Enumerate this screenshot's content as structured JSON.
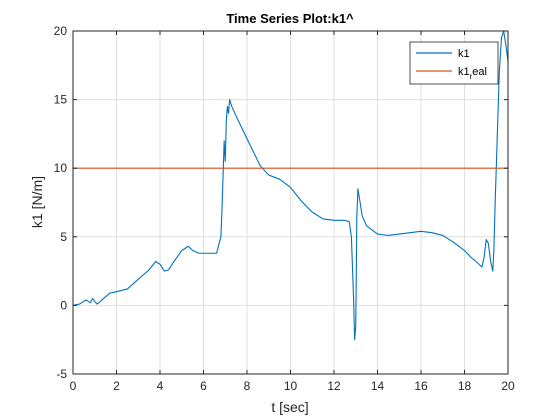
{
  "chart_data": {
    "type": "line",
    "title": "Time Series Plot:k1^",
    "xlabel": "t [sec]",
    "ylabel": "k1 [N/m]",
    "xlim": [
      0,
      20
    ],
    "ylim": [
      -5,
      20
    ],
    "xticks": [
      0,
      2,
      4,
      6,
      8,
      10,
      12,
      14,
      16,
      18,
      20
    ],
    "yticks": [
      -5,
      0,
      5,
      10,
      15,
      20
    ],
    "grid": true,
    "legend_position": "top-right",
    "series": [
      {
        "name": "k1",
        "color": "#0072bd",
        "x": [
          0,
          0.3,
          0.6,
          0.8,
          0.9,
          1.0,
          1.1,
          1.2,
          1.4,
          1.7,
          2.0,
          2.5,
          3.0,
          3.5,
          3.8,
          4.0,
          4.2,
          4.4,
          4.6,
          5.0,
          5.3,
          5.5,
          5.8,
          6.2,
          6.6,
          6.8,
          6.85,
          6.9,
          6.95,
          7.0,
          7.05,
          7.1,
          7.15,
          7.2,
          7.3,
          7.5,
          7.8,
          8.2,
          8.6,
          9.0,
          9.5,
          10.0,
          10.5,
          11.0,
          11.5,
          12.0,
          12.5,
          12.7,
          12.8,
          12.9,
          12.95,
          13.0,
          13.05,
          13.1,
          13.2,
          13.3,
          13.5,
          14.0,
          14.5,
          15.0,
          15.5,
          16.0,
          16.5,
          17.0,
          17.5,
          18.0,
          18.3,
          18.6,
          18.8,
          18.9,
          19.0,
          19.1,
          19.2,
          19.3,
          19.35,
          19.4,
          19.5,
          19.6,
          19.7,
          19.8,
          19.9,
          20.0
        ],
        "y": [
          0,
          0.1,
          0.4,
          0.2,
          0.5,
          0.3,
          0.1,
          0.2,
          0.5,
          0.9,
          1.0,
          1.2,
          1.9,
          2.6,
          3.2,
          3.0,
          2.5,
          2.6,
          3.1,
          4.0,
          4.3,
          4.0,
          3.8,
          3.8,
          3.8,
          5.0,
          7.0,
          9.5,
          12.0,
          10.5,
          13.5,
          14.5,
          14.0,
          15.0,
          14.5,
          13.8,
          12.8,
          11.5,
          10.2,
          9.5,
          9.2,
          8.6,
          7.6,
          6.8,
          6.3,
          6.2,
          6.2,
          6.1,
          5.0,
          0.5,
          -2.5,
          -1.5,
          6.5,
          8.5,
          7.5,
          6.5,
          5.8,
          5.2,
          5.1,
          5.2,
          5.3,
          5.4,
          5.3,
          5.1,
          4.6,
          4.0,
          3.5,
          3.1,
          2.8,
          3.5,
          4.8,
          4.5,
          3.2,
          2.5,
          4.0,
          7.0,
          12.0,
          17.0,
          19.5,
          20.0,
          19.0,
          17.8
        ]
      },
      {
        "name": "k1_real",
        "color": "#d95319",
        "x": [
          0,
          20
        ],
        "y": [
          10,
          10
        ]
      }
    ]
  },
  "legend": {
    "entries": [
      {
        "base": "k1",
        "sub": ""
      },
      {
        "base": "k1",
        "sub": "r",
        "rest": "eal"
      }
    ]
  }
}
